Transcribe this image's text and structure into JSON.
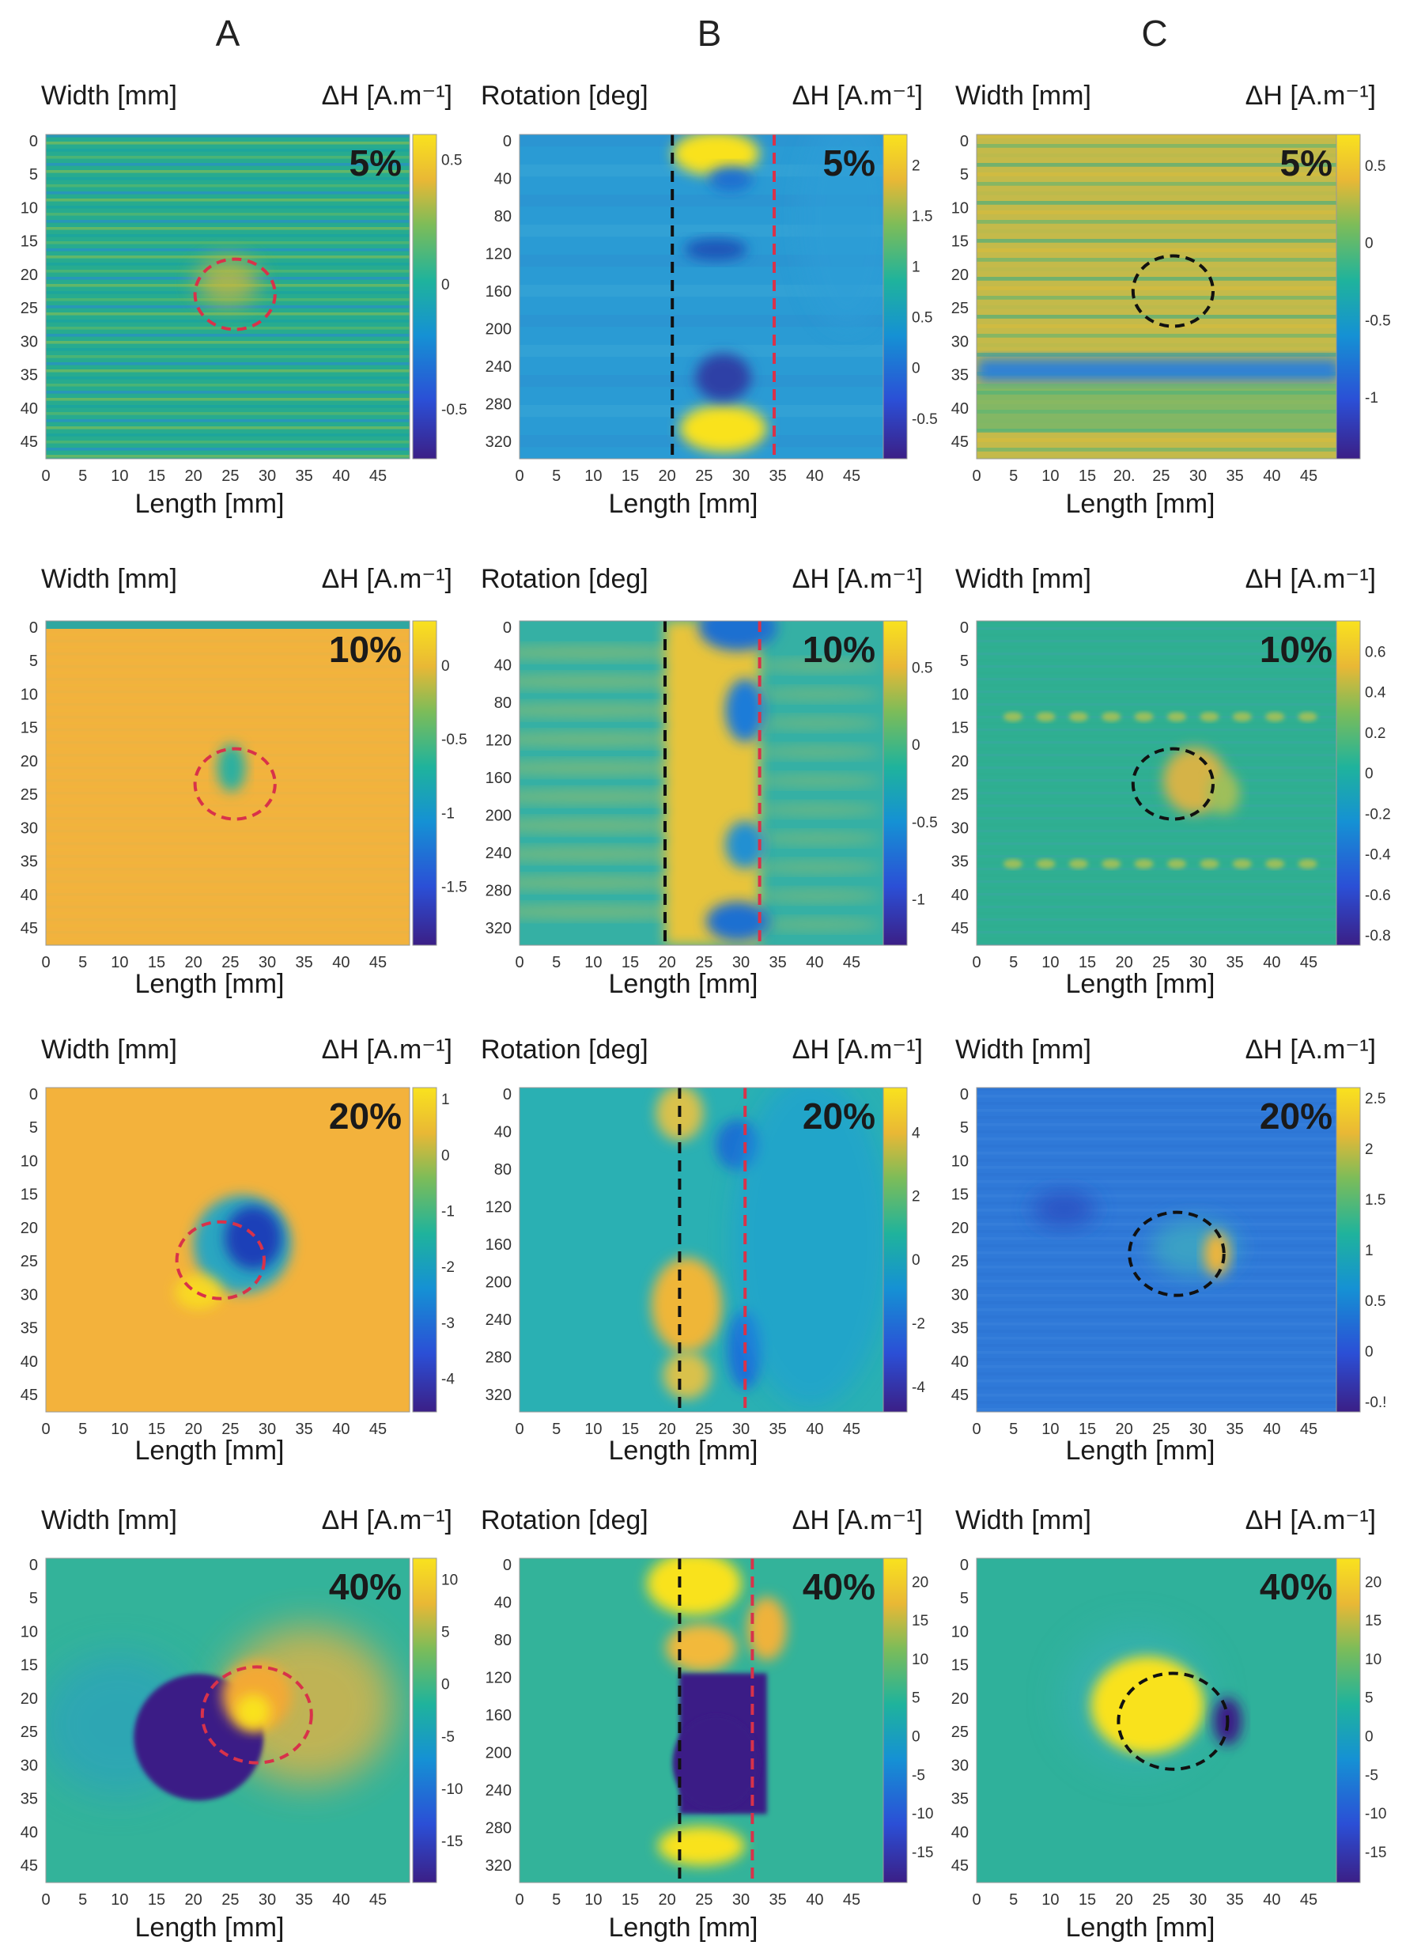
{
  "figure": {
    "columns": [
      "A",
      "B",
      "C"
    ]
  },
  "colors": {
    "yellow": "#f9e21e",
    "green": "#2eb37d",
    "blue": "#1f6fd1",
    "navy": "#3b1f86",
    "marker_red": "#d8324a",
    "marker_black": "#111111"
  },
  "chart_data": [
    {
      "type": "heatmap",
      "id": "A-5",
      "column": "A",
      "level": "5%",
      "ylabel": "Width [mm]",
      "xlabel": "Length [mm]",
      "cbar_label": "ΔH [A.m⁻¹]",
      "x_ticks": [
        "0",
        "5",
        "10",
        "15",
        "20",
        "25",
        "30",
        "35",
        "40",
        "45"
      ],
      "y_ticks": [
        "0",
        "5",
        "10",
        "15",
        "20",
        "25",
        "30",
        "35",
        "40",
        "45"
      ],
      "cbar_ticks": [
        "0.5",
        "0",
        "-0.5"
      ],
      "clim": [
        -0.7,
        0.6
      ],
      "marker": "circle",
      "marker_color": "red"
    },
    {
      "type": "heatmap",
      "id": "B-5",
      "column": "B",
      "level": "5%",
      "ylabel": "Rotation [deg]",
      "xlabel": "Length [mm]",
      "cbar_label": "ΔH [A.m⁻¹]",
      "x_ticks": [
        "0",
        "5",
        "10",
        "15",
        "20",
        "25",
        "30",
        "35",
        "40",
        "45"
      ],
      "y_ticks": [
        "0",
        "40",
        "80",
        "120",
        "160",
        "200",
        "240",
        "280",
        "320"
      ],
      "cbar_ticks": [
        "2",
        "1.5",
        "1",
        "0.5",
        "0",
        "-0.5"
      ],
      "clim": [
        -0.9,
        2.3
      ],
      "marker": "lines",
      "marker_positions_mm": [
        21,
        35
      ]
    },
    {
      "type": "heatmap",
      "id": "C-5",
      "column": "C",
      "level": "5%",
      "ylabel": "Width [mm]",
      "xlabel": "Length [mm]",
      "cbar_label": "ΔH [A.m⁻¹]",
      "x_ticks": [
        "0",
        "5",
        "10",
        "15",
        "20.",
        "25",
        "30",
        "35",
        "40",
        "45"
      ],
      "y_ticks": [
        "0",
        "5",
        "10",
        "15",
        "20",
        "25",
        "30",
        "35",
        "40",
        "45"
      ],
      "cbar_ticks": [
        "0.5",
        "0",
        "-0.5",
        "-1"
      ],
      "clim": [
        -1.4,
        0.7
      ],
      "marker": "circle",
      "marker_color": "black"
    },
    {
      "type": "heatmap",
      "id": "A-10",
      "column": "A",
      "level": "10%",
      "ylabel": "Width [mm]",
      "xlabel": "Length [mm]",
      "cbar_label": "ΔH [A.m⁻¹]",
      "x_ticks": [
        "0",
        "5",
        "10",
        "15",
        "20",
        "25",
        "30",
        "35",
        "40",
        "45"
      ],
      "y_ticks": [
        "0",
        "5",
        "10",
        "15",
        "20",
        "25",
        "30",
        "35",
        "40",
        "45"
      ],
      "cbar_ticks": [
        "0",
        "-0.5",
        "-1",
        "-1.5"
      ],
      "clim": [
        -1.9,
        0.3
      ],
      "marker": "circle",
      "marker_color": "red"
    },
    {
      "type": "heatmap",
      "id": "B-10",
      "column": "B",
      "level": "10%",
      "ylabel": "Rotation [deg]",
      "xlabel": "Length [mm]",
      "cbar_label": "ΔH [A.m⁻¹]",
      "x_ticks": [
        "0",
        "5",
        "10",
        "15",
        "20",
        "25",
        "30",
        "35",
        "40",
        "45"
      ],
      "y_ticks": [
        "0",
        "40",
        "80",
        "120",
        "160",
        "200",
        "240",
        "280",
        "320"
      ],
      "cbar_ticks": [
        "0.5",
        "0",
        "-0.5",
        "-1"
      ],
      "clim": [
        -1.3,
        0.8
      ],
      "marker": "lines",
      "marker_positions_mm": [
        20,
        33
      ]
    },
    {
      "type": "heatmap",
      "id": "C-10",
      "column": "C",
      "level": "10%",
      "ylabel": "Width [mm]",
      "xlabel": "Length [mm]",
      "cbar_label": "ΔH [A.m⁻¹]",
      "x_ticks": [
        "0",
        "5",
        "10",
        "15",
        "20",
        "25",
        "30",
        "35",
        "40",
        "45"
      ],
      "y_ticks": [
        "0",
        "5",
        "10",
        "15",
        "20",
        "25",
        "30",
        "35",
        "40",
        "45"
      ],
      "cbar_ticks": [
        "0.6",
        "0.4",
        "0.2",
        "0",
        "-0.2",
        "-0.4",
        "-0.6",
        "-0.8"
      ],
      "clim": [
        -0.85,
        0.75
      ],
      "marker": "circle",
      "marker_color": "black"
    },
    {
      "type": "heatmap",
      "id": "A-20",
      "column": "A",
      "level": "20%",
      "ylabel": "Width [mm]",
      "xlabel": "Length [mm]",
      "cbar_label": "ΔH [A.m⁻¹]",
      "x_ticks": [
        "0",
        "5",
        "10",
        "15",
        "20",
        "25",
        "30",
        "35",
        "40",
        "45"
      ],
      "y_ticks": [
        "0",
        "5",
        "10",
        "15",
        "20",
        "25",
        "30",
        "35",
        "40",
        "45"
      ],
      "cbar_ticks": [
        "1",
        "0",
        "-1",
        "-2",
        "-3",
        "-4"
      ],
      "clim": [
        -4.6,
        1.2
      ],
      "marker": "circle",
      "marker_color": "red"
    },
    {
      "type": "heatmap",
      "id": "B-20",
      "column": "B",
      "level": "20%",
      "ylabel": "Rotation [deg]",
      "xlabel": "Length [mm]",
      "cbar_label": "ΔH [A.m⁻¹]",
      "x_ticks": [
        "0",
        "5",
        "10",
        "15",
        "20",
        "25",
        "30",
        "35",
        "40",
        "45"
      ],
      "y_ticks": [
        "0",
        "40",
        "80",
        "120",
        "160",
        "200",
        "240",
        "280",
        "320"
      ],
      "cbar_ticks": [
        "4",
        "2",
        "0",
        "-2",
        "-4"
      ],
      "clim": [
        -4.8,
        5.4
      ],
      "marker": "lines",
      "marker_positions_mm": [
        22,
        31
      ]
    },
    {
      "type": "heatmap",
      "id": "C-20",
      "column": "C",
      "level": "20%",
      "ylabel": "Width [mm]",
      "xlabel": "Length [mm]",
      "cbar_label": "ΔH [A.m⁻¹]",
      "x_ticks": [
        "0",
        "5",
        "10",
        "15",
        "20",
        "25",
        "30",
        "35",
        "40",
        "45"
      ],
      "y_ticks": [
        "0",
        "5",
        "10",
        "15",
        "20",
        "25",
        "30",
        "35",
        "40",
        "45"
      ],
      "cbar_ticks": [
        "2.5",
        "2",
        "1.5",
        "1",
        "0.5",
        "0",
        "-0.!"
      ],
      "clim": [
        -0.6,
        2.6
      ],
      "marker": "circle",
      "marker_color": "black"
    },
    {
      "type": "heatmap",
      "id": "A-40",
      "column": "A",
      "level": "40%",
      "ylabel": "Width [mm]",
      "xlabel": "Length [mm]",
      "cbar_label": "ΔH [A.m⁻¹]",
      "x_ticks": [
        "0",
        "5",
        "10",
        "15",
        "20",
        "25",
        "30",
        "35",
        "40",
        "45"
      ],
      "y_ticks": [
        "0",
        "5",
        "10",
        "15",
        "20",
        "25",
        "30",
        "35",
        "40",
        "45"
      ],
      "cbar_ticks": [
        "10",
        "5",
        "0",
        "-5",
        "-10",
        "-15"
      ],
      "clim": [
        -19,
        12
      ],
      "marker": "circle",
      "marker_color": "red"
    },
    {
      "type": "heatmap",
      "id": "B-40",
      "column": "B",
      "level": "40%",
      "ylabel": "Rotation [deg]",
      "xlabel": "Length [mm]",
      "cbar_label": "ΔH [A.m⁻¹]",
      "x_ticks": [
        "0",
        "5",
        "10",
        "15",
        "20",
        "25",
        "30",
        "35",
        "40",
        "45"
      ],
      "y_ticks": [
        "0",
        "40",
        "80",
        "120",
        "160",
        "200",
        "240",
        "280",
        "320"
      ],
      "cbar_ticks": [
        "20",
        "15",
        "10",
        "5",
        "0",
        "-5",
        "-10",
        "-15"
      ],
      "clim": [
        -19,
        23
      ],
      "marker": "lines",
      "marker_positions_mm": [
        22,
        32
      ]
    },
    {
      "type": "heatmap",
      "id": "C-40",
      "column": "C",
      "level": "40%",
      "ylabel": "Width [mm]",
      "xlabel": "Length [mm]",
      "cbar_label": "ΔH [A.m⁻¹]",
      "x_ticks": [
        "0",
        "5",
        "10",
        "15",
        "20",
        "25",
        "30",
        "35",
        "40",
        "45"
      ],
      "y_ticks": [
        "0",
        "5",
        "10",
        "15",
        "20",
        "25",
        "30",
        "35",
        "40",
        "45"
      ],
      "cbar_ticks": [
        "20",
        "15",
        "10",
        "5",
        "0",
        "-5",
        "-10",
        "-15"
      ],
      "clim": [
        -19,
        23
      ],
      "marker": "circle",
      "marker_color": "black"
    }
  ]
}
